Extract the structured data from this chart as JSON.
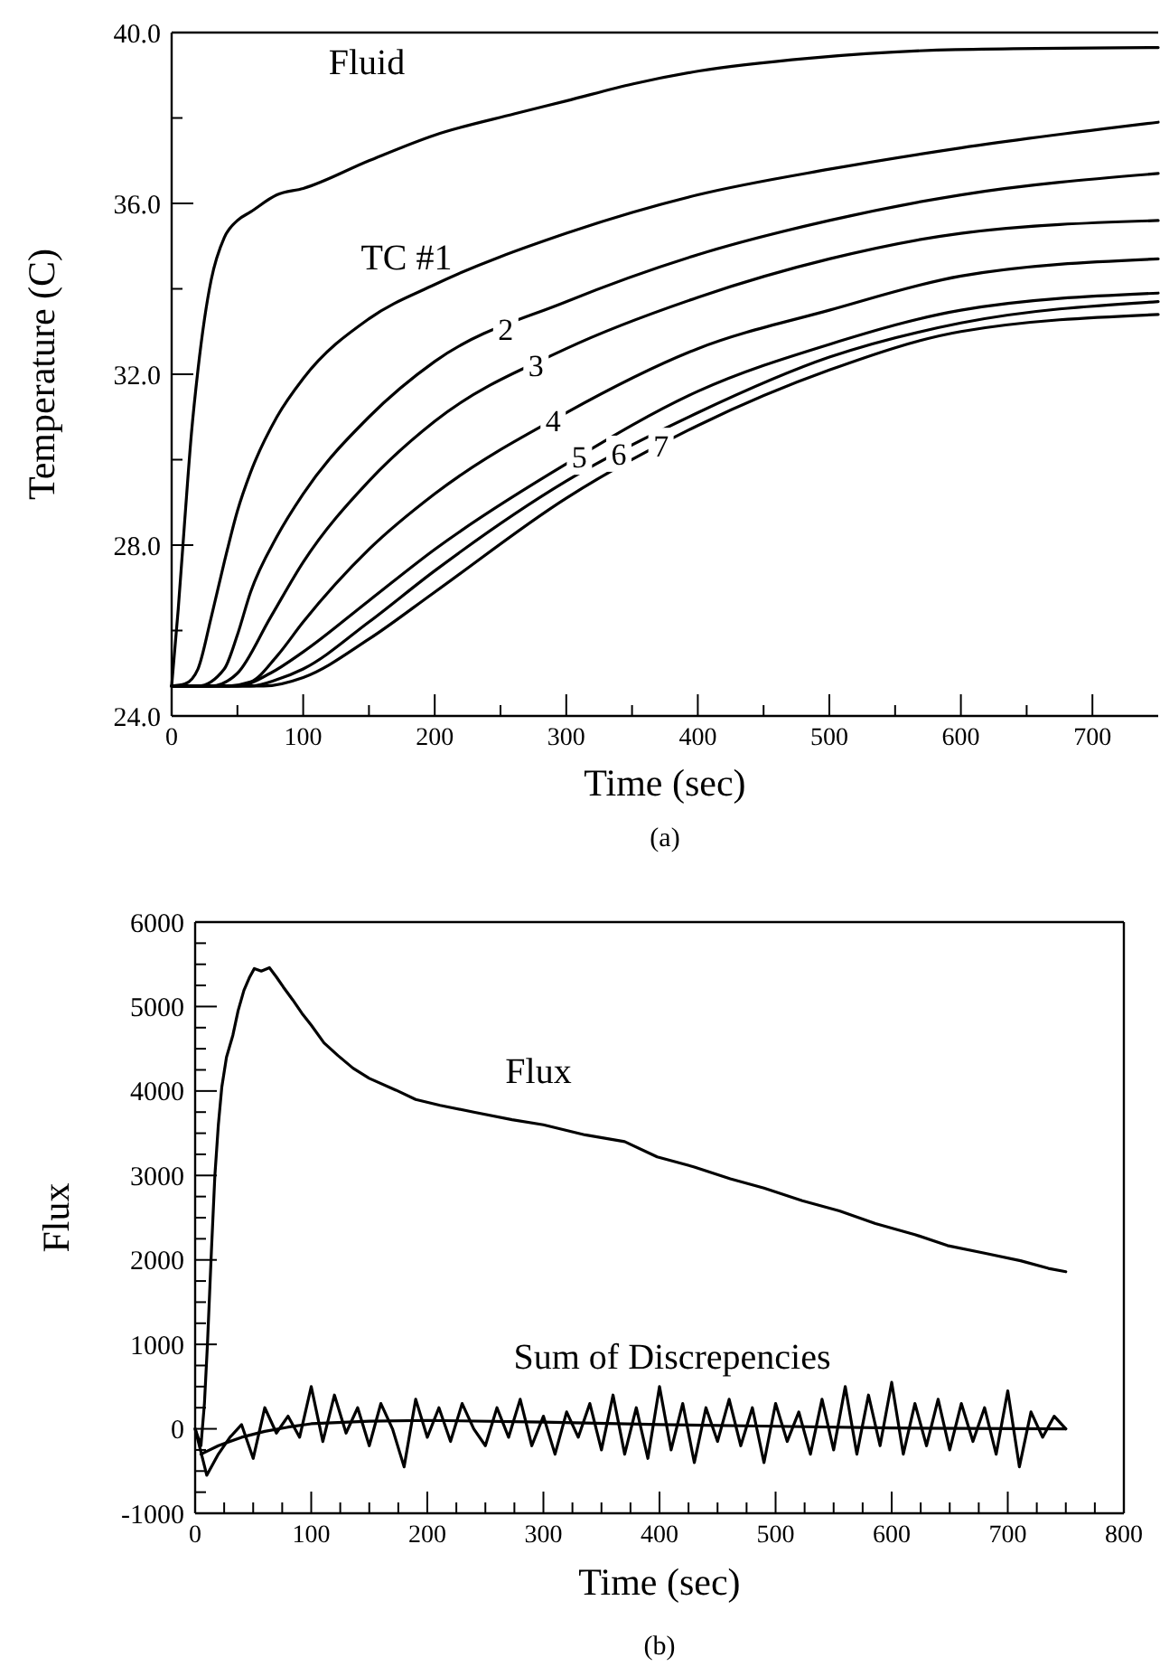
{
  "chart_data": [
    {
      "type": "line",
      "title": "(a)",
      "xlabel": "Time (sec)",
      "ylabel": "Temperature (C)",
      "xlim": [
        0,
        750
      ],
      "ylim": [
        24,
        40
      ],
      "xticks": [
        0,
        {
          "value": 50,
          "label": null
        },
        100,
        {
          "value": 150,
          "label": null
        },
        200,
        {
          "value": 250,
          "label": null
        },
        300,
        {
          "value": 350,
          "label": null
        },
        400,
        {
          "value": 450,
          "label": null
        },
        500,
        {
          "value": 550,
          "label": null
        },
        600,
        {
          "value": 650,
          "label": null
        },
        700
      ],
      "yticks": [
        {
          "value": 24,
          "label": "24.0"
        },
        {
          "value": 26,
          "label": null
        },
        {
          "value": 28,
          "label": "28.0"
        },
        {
          "value": 30,
          "label": null
        },
        {
          "value": 32,
          "label": "32.0"
        },
        {
          "value": 34,
          "label": null
        },
        {
          "value": 36,
          "label": "36.0"
        },
        {
          "value": 38,
          "label": null
        },
        {
          "value": 40,
          "label": "40.0"
        }
      ],
      "series": [
        {
          "name": "Fluid",
          "color": "#000000",
          "x": [
            0,
            5,
            10,
            15,
            20,
            25,
            30,
            40,
            50,
            60,
            80,
            100,
            150,
            200,
            261,
            300,
            351,
            401,
            485,
            596,
            750
          ],
          "values": [
            24.7,
            26.5,
            28.6,
            30.6,
            32.1,
            33.3,
            34.2,
            35.2,
            35.6,
            35.8,
            36.2,
            36.35,
            37.0,
            37.6,
            38.1,
            38.4,
            38.8,
            39.1,
            39.4,
            39.6,
            39.65
          ]
        },
        {
          "name": "TC #1",
          "color": "#000000",
          "x": [
            0,
            10,
            20,
            30,
            40,
            50,
            60,
            80,
            100,
            150,
            200,
            300,
            400,
            500,
            600,
            750
          ],
          "values": [
            24.7,
            24.75,
            25.1,
            26.3,
            27.6,
            28.8,
            29.7,
            31.0,
            31.9,
            33.3,
            34.1,
            35.3,
            36.2,
            36.8,
            37.3,
            37.9
          ]
        },
        {
          "name": "2",
          "color": "#000000",
          "x": [
            0,
            20,
            40,
            50,
            60,
            80,
            100,
            150,
            200,
            300,
            400,
            500,
            600,
            750
          ],
          "values": [
            24.7,
            24.7,
            25.1,
            25.9,
            26.9,
            28.2,
            29.2,
            31.0,
            32.3,
            33.7,
            34.8,
            35.6,
            36.2,
            36.7
          ]
        },
        {
          "name": "3",
          "color": "#000000",
          "x": [
            0,
            30,
            50,
            75,
            100,
            150,
            200,
            300,
            400,
            500,
            600,
            750
          ],
          "values": [
            24.7,
            24.7,
            25.0,
            26.3,
            27.6,
            29.5,
            30.9,
            32.6,
            33.8,
            34.7,
            35.3,
            35.6
          ]
        },
        {
          "name": "4",
          "color": "#000000",
          "x": [
            0,
            40,
            60,
            80,
            100,
            150,
            200,
            300,
            400,
            500,
            600,
            750
          ],
          "values": [
            24.7,
            24.7,
            24.8,
            25.4,
            26.2,
            27.9,
            29.2,
            31.1,
            32.6,
            33.5,
            34.3,
            34.7
          ]
        },
        {
          "name": "5",
          "color": "#000000",
          "x": [
            0,
            50,
            75,
            100,
            150,
            200,
            300,
            400,
            500,
            600,
            750
          ],
          "values": [
            24.7,
            24.7,
            25.0,
            25.5,
            26.7,
            27.9,
            29.9,
            31.6,
            32.7,
            33.5,
            33.9
          ]
        },
        {
          "name": "6",
          "color": "#000000",
          "x": [
            0,
            60,
            80,
            100,
            150,
            200,
            300,
            400,
            500,
            600,
            750
          ],
          "values": [
            24.7,
            24.7,
            24.85,
            25.1,
            26.2,
            27.4,
            29.5,
            31.1,
            32.4,
            33.2,
            33.7
          ]
        },
        {
          "name": "7",
          "color": "#000000",
          "x": [
            0,
            70,
            100,
            150,
            200,
            300,
            400,
            500,
            600,
            750
          ],
          "values": [
            24.7,
            24.7,
            24.9,
            25.8,
            26.9,
            29.1,
            30.8,
            32.1,
            33.0,
            33.4
          ]
        }
      ],
      "grid": false
    },
    {
      "type": "line",
      "title": "(b)",
      "xlabel": "Time (sec)",
      "ylabel": "Flux",
      "xlim": [
        0,
        800
      ],
      "ylim": [
        -1000,
        6000
      ],
      "xticks": [
        0,
        {
          "value": 25,
          "label": null
        },
        {
          "value": 50,
          "label": null
        },
        {
          "value": 75,
          "label": null
        },
        100,
        {
          "value": 125,
          "label": null
        },
        {
          "value": 150,
          "label": null
        },
        {
          "value": 175,
          "label": null
        },
        200,
        {
          "value": 225,
          "label": null
        },
        {
          "value": 250,
          "label": null
        },
        {
          "value": 275,
          "label": null
        },
        300,
        {
          "value": 325,
          "label": null
        },
        {
          "value": 350,
          "label": null
        },
        {
          "value": 375,
          "label": null
        },
        400,
        {
          "value": 425,
          "label": null
        },
        {
          "value": 450,
          "label": null
        },
        {
          "value": 475,
          "label": null
        },
        500,
        {
          "value": 525,
          "label": null
        },
        {
          "value": 550,
          "label": null
        },
        {
          "value": 575,
          "label": null
        },
        600,
        {
          "value": 625,
          "label": null
        },
        {
          "value": 650,
          "label": null
        },
        {
          "value": 675,
          "label": null
        },
        700,
        {
          "value": 725,
          "label": null
        },
        {
          "value": 750,
          "label": null
        },
        {
          "value": 775,
          "label": null
        },
        800
      ],
      "yticks": [
        -1000,
        {
          "value": -750,
          "label": null
        },
        {
          "value": -500,
          "label": null
        },
        {
          "value": -250,
          "label": null
        },
        0,
        {
          "value": 250,
          "label": null
        },
        {
          "value": 500,
          "label": null
        },
        {
          "value": 750,
          "label": null
        },
        1000,
        {
          "value": 1250,
          "label": null
        },
        {
          "value": 1500,
          "label": null
        },
        {
          "value": 1750,
          "label": null
        },
        2000,
        {
          "value": 2250,
          "label": null
        },
        {
          "value": 2500,
          "label": null
        },
        {
          "value": 2750,
          "label": null
        },
        3000,
        {
          "value": 3250,
          "label": null
        },
        {
          "value": 3500,
          "label": null
        },
        {
          "value": 3750,
          "label": null
        },
        4000,
        {
          "value": 4250,
          "label": null
        },
        {
          "value": 4500,
          "label": null
        },
        {
          "value": 4750,
          "label": null
        },
        5000,
        {
          "value": 5250,
          "label": null
        },
        {
          "value": 5500,
          "label": null
        },
        {
          "value": 5750,
          "label": null
        },
        6000
      ],
      "series": [
        {
          "name": "Flux",
          "color": "#000000",
          "x": [
            0,
            5,
            8,
            10.6,
            14,
            17,
            20,
            23,
            27,
            32.5,
            37,
            42,
            47,
            51,
            57,
            64,
            70,
            76,
            84,
            92,
            100,
            111,
            123,
            136,
            150,
            173,
            190,
            211,
            240,
            273,
            300,
            336,
            370,
            398,
            430,
            461,
            490,
            523,
            555,
            586,
            620,
            648,
            680,
            711,
            735,
            750
          ],
          "values": [
            0,
            -200,
            300,
            1000,
            2100,
            3000,
            3600,
            4050,
            4400,
            4660,
            4950,
            5190,
            5350,
            5450,
            5420,
            5460,
            5350,
            5230,
            5080,
            4920,
            4780,
            4570,
            4420,
            4270,
            4150,
            4010,
            3900,
            3830,
            3750,
            3660,
            3600,
            3480,
            3400,
            3220,
            3100,
            2960,
            2850,
            2700,
            2580,
            2430,
            2300,
            2170,
            2080,
            1990,
            1900,
            1860
          ]
        },
        {
          "name": "Sum of Discrepencies",
          "color": "#000000",
          "x": [
            0,
            10,
            20,
            30,
            40,
            50,
            60,
            70,
            80,
            90,
            100,
            110,
            120,
            130,
            140,
            150,
            160,
            170,
            180,
            190,
            200,
            210,
            220,
            230,
            240,
            250,
            260,
            270,
            280,
            290,
            300,
            310,
            320,
            330,
            340,
            350,
            360,
            370,
            380,
            390,
            400,
            410,
            420,
            430,
            440,
            450,
            460,
            470,
            480,
            490,
            500,
            510,
            520,
            530,
            540,
            550,
            560,
            570,
            580,
            590,
            600,
            610,
            620,
            630,
            640,
            650,
            660,
            670,
            680,
            690,
            700,
            710,
            720,
            730,
            740,
            750
          ],
          "values": [
            0,
            -550,
            -300,
            -100,
            50,
            -350,
            250,
            -50,
            150,
            -100,
            500,
            -150,
            400,
            -50,
            250,
            -200,
            300,
            0,
            -450,
            350,
            -100,
            250,
            -150,
            300,
            0,
            -200,
            250,
            -100,
            350,
            -200,
            150,
            -300,
            200,
            -100,
            300,
            -250,
            400,
            -300,
            250,
            -350,
            500,
            -250,
            300,
            -400,
            250,
            -150,
            350,
            -200,
            250,
            -400,
            300,
            -150,
            200,
            -300,
            350,
            -250,
            500,
            -300,
            400,
            -200,
            550,
            -300,
            300,
            -200,
            350,
            -250,
            300,
            -150,
            250,
            -300,
            450,
            -450,
            200,
            -100,
            150,
            0
          ]
        },
        {
          "color": "#000000",
          "x": [
            5,
            20,
            40,
            60,
            80,
            100,
            150,
            200,
            300,
            400,
            500,
            600,
            750
          ],
          "values": [
            -300,
            -200,
            -100,
            -30,
            20,
            60,
            90,
            100,
            80,
            50,
            30,
            10,
            0
          ]
        }
      ],
      "grid": false
    }
  ]
}
